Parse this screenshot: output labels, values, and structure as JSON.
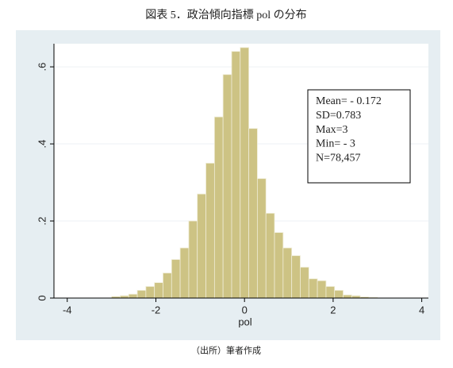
{
  "chart_data": {
    "type": "histogram",
    "title": "図表 5．政治傾向指標 pol の分布",
    "xlabel": "pol",
    "source": "（出所）筆者作成",
    "annotation": [
      "Mean= - 0.172",
      "SD=0.783",
      "Max=3",
      "Min= - 3",
      "N=78,457"
    ],
    "bins": [
      -3,
      -2.806,
      -2.613,
      -2.419,
      -2.226,
      -2.032,
      -1.839,
      -1.645,
      -1.452,
      -1.258,
      -1.065,
      -0.871,
      -0.677,
      -0.484,
      -0.29,
      -0.097,
      0.097,
      0.29,
      0.484,
      0.677,
      0.871,
      1.065,
      1.258,
      1.452,
      1.645,
      1.839,
      2.032,
      2.226,
      2.419,
      2.613,
      2.806,
      3
    ],
    "values": [
      0.004,
      0.006,
      0.01,
      0.02,
      0.03,
      0.04,
      0.065,
      0.1,
      0.13,
      0.2,
      0.27,
      0.35,
      0.47,
      0.58,
      0.64,
      0.65,
      0.44,
      0.31,
      0.22,
      0.17,
      0.13,
      0.11,
      0.08,
      0.05,
      0.045,
      0.03,
      0.02,
      0.008,
      0.006,
      0.003,
      0.002
    ],
    "color": "#cdc384",
    "xlim": [
      -4.3,
      4.15
    ],
    "xticks": [
      -4,
      -2,
      0,
      2,
      4
    ],
    "ylim": [
      0,
      0.66
    ],
    "yticks": [
      0,
      {
        "value": 0.2,
        "label": ".2"
      },
      {
        "value": 0.4,
        "label": ".4"
      },
      {
        "value": 0.6,
        "label": ".6"
      }
    ],
    "grid": true
  }
}
